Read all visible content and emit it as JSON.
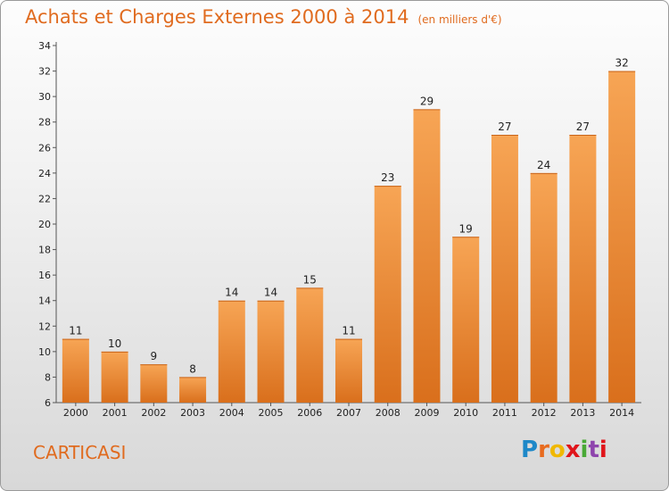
{
  "header": {
    "title": "Achats et Charges Externes 2000 à 2014",
    "unit": "(en milliers d'€)"
  },
  "commune": "CARTICASI",
  "logo": {
    "letters": [
      "P",
      "r",
      "o",
      "x",
      "i",
      "t",
      "i"
    ],
    "colors": [
      "#1e88c8",
      "#e86b1f",
      "#f0b800",
      "#e0151b",
      "#49a936",
      "#8e44ad",
      "#e0151b"
    ]
  },
  "colors": {
    "accent": "#e06b1f",
    "bar_top": "#f7a555",
    "bar_bottom": "#d96f1c"
  },
  "chart_data": {
    "type": "bar",
    "title": "Achats et Charges Externes 2000 à 2014",
    "subtitle": "(en milliers d'€)",
    "categories": [
      "2000",
      "2001",
      "2002",
      "2003",
      "2004",
      "2005",
      "2006",
      "2007",
      "2008",
      "2009",
      "2010",
      "2011",
      "2012",
      "2013",
      "2014"
    ],
    "values": [
      11,
      10,
      9,
      8,
      14,
      14,
      15,
      11,
      23,
      29,
      19,
      27,
      24,
      27,
      32
    ],
    "ylim": [
      6,
      34
    ],
    "yticks": [
      6,
      8,
      10,
      12,
      14,
      16,
      18,
      20,
      22,
      24,
      26,
      28,
      30,
      32,
      34
    ],
    "grid": false,
    "data_labels": true
  }
}
